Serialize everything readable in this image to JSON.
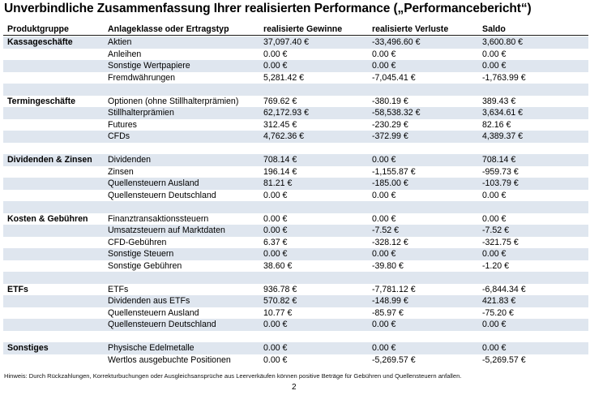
{
  "title": "Unverbindliche Zusammenfassung Ihrer realisierten Performance („Performancebericht“)",
  "headers": [
    "Produktgruppe",
    "Anlageklasse oder Ertragstyp",
    "realisierte Gewinne",
    "realisierte Verluste",
    "Saldo"
  ],
  "rows": [
    {
      "group": "Kassageschäfte",
      "type": "Aktien",
      "gain": "37,097.40 €",
      "loss": "-33,496.60 €",
      "saldo": "3,600.80 €"
    },
    {
      "group": "",
      "type": "Anleihen",
      "gain": "0.00 €",
      "loss": "0.00 €",
      "saldo": "0.00 €"
    },
    {
      "group": "",
      "type": "Sonstige Wertpapiere",
      "gain": "0.00 €",
      "loss": "0.00 €",
      "saldo": "0.00 €"
    },
    {
      "group": "",
      "type": "Fremdwährungen",
      "gain": "5,281.42 €",
      "loss": "-7,045.41 €",
      "saldo": "-1,763.99 €"
    },
    {
      "group": "",
      "type": "",
      "gain": "",
      "loss": "",
      "saldo": ""
    },
    {
      "group": "Termingeschäfte",
      "type": "Optionen (ohne Stillhalterprämien)",
      "gain": "769.62 €",
      "loss": "-380.19 €",
      "saldo": "389.43 €"
    },
    {
      "group": "",
      "type": "Stillhalterprämien",
      "gain": "62,172.93 €",
      "loss": "-58,538.32 €",
      "saldo": "3,634.61 €"
    },
    {
      "group": "",
      "type": "Futures",
      "gain": "312.45 €",
      "loss": "-230.29 €",
      "saldo": "82.16 €"
    },
    {
      "group": "",
      "type": "CFDs",
      "gain": "4,762.36 €",
      "loss": "-372.99 €",
      "saldo": "4,389.37 €"
    },
    {
      "group": "",
      "type": "",
      "gain": "",
      "loss": "",
      "saldo": ""
    },
    {
      "group": "Dividenden & Zinsen",
      "type": "Dividenden",
      "gain": "708.14 €",
      "loss": "0.00 €",
      "saldo": "708.14 €"
    },
    {
      "group": "",
      "type": "Zinsen",
      "gain": "196.14 €",
      "loss": "-1,155.87 €",
      "saldo": "-959.73 €"
    },
    {
      "group": "",
      "type": "Quellensteuern Ausland",
      "gain": "81.21 €",
      "loss": "-185.00 €",
      "saldo": "-103.79 €"
    },
    {
      "group": "",
      "type": "Quellensteuern Deutschland",
      "gain": "0.00 €",
      "loss": "0.00 €",
      "saldo": "0.00 €"
    },
    {
      "group": "",
      "type": "",
      "gain": "",
      "loss": "",
      "saldo": ""
    },
    {
      "group": "Kosten & Gebühren",
      "type": "Finanztransaktionssteuern",
      "gain": "0.00 €",
      "loss": "0.00 €",
      "saldo": "0.00 €"
    },
    {
      "group": "",
      "type": "Umsatzsteuern auf Marktdaten",
      "gain": "0.00 €",
      "loss": "-7.52 €",
      "saldo": "-7.52 €"
    },
    {
      "group": "",
      "type": "CFD-Gebühren",
      "gain": "6.37 €",
      "loss": "-328.12 €",
      "saldo": "-321.75 €"
    },
    {
      "group": "",
      "type": "Sonstige Steuern",
      "gain": "0.00 €",
      "loss": "0.00 €",
      "saldo": "0.00 €"
    },
    {
      "group": "",
      "type": "Sonstige Gebühren",
      "gain": "38.60 €",
      "loss": "-39.80 €",
      "saldo": "-1.20 €"
    },
    {
      "group": "",
      "type": "",
      "gain": "",
      "loss": "",
      "saldo": ""
    },
    {
      "group": "ETFs",
      "type": "ETFs",
      "gain": "936.78 €",
      "loss": "-7,781.12 €",
      "saldo": "-6,844.34 €"
    },
    {
      "group": "",
      "type": "Dividenden aus ETFs",
      "gain": "570.82 €",
      "loss": "-148.99 €",
      "saldo": "421.83 €"
    },
    {
      "group": "",
      "type": "Quellensteuern Ausland",
      "gain": "10.77 €",
      "loss": "-85.97 €",
      "saldo": "-75.20 €"
    },
    {
      "group": "",
      "type": "Quellensteuern Deutschland",
      "gain": "0.00 €",
      "loss": "0.00 €",
      "saldo": "0.00 €"
    },
    {
      "group": "",
      "type": "",
      "gain": "",
      "loss": "",
      "saldo": ""
    },
    {
      "group": "Sonstiges",
      "type": "Physische Edelmetalle",
      "gain": "0.00 €",
      "loss": "0.00 €",
      "saldo": "0.00 €"
    },
    {
      "group": "",
      "type": "Wertlos ausgebuchte Positionen",
      "gain": "0.00 €",
      "loss": "-5,269.57 €",
      "saldo": "-5,269.57 €"
    }
  ],
  "note": "Hinweis: Durch Rückzahlungen, Korrekturbuchungen oder Ausgleichsansprüche aus Leerverkäufen können positive Beträge für Gebühren und Quellensteuern anfallen.",
  "page_number": "2"
}
